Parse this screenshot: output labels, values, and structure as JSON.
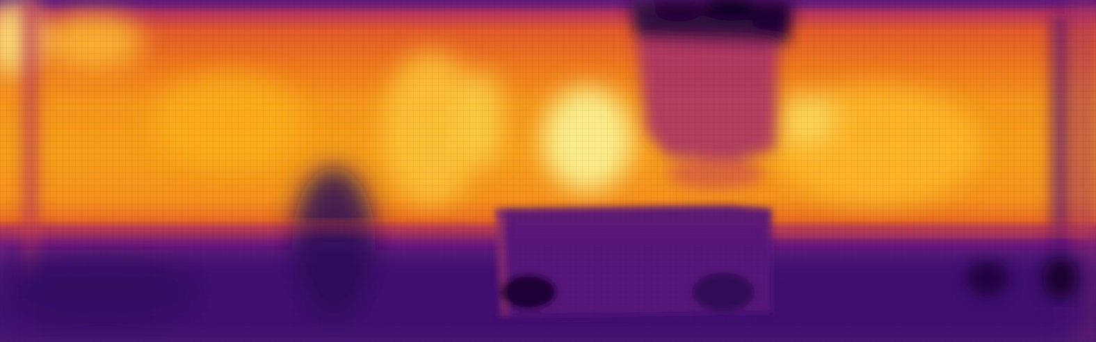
{
  "image": {
    "kind": "depth-heatmap",
    "colormap": "inferno",
    "palette": {
      "darkest": "#0d0321",
      "deep_purple": "#3b0f70",
      "purple": "#6a1b80",
      "magenta": "#a2306a",
      "red_orange": "#d8492f",
      "orange": "#f07a16",
      "amber": "#fba40f",
      "yellow": "#f6d74a",
      "pale_yellow": "#fcf5a0"
    }
  }
}
